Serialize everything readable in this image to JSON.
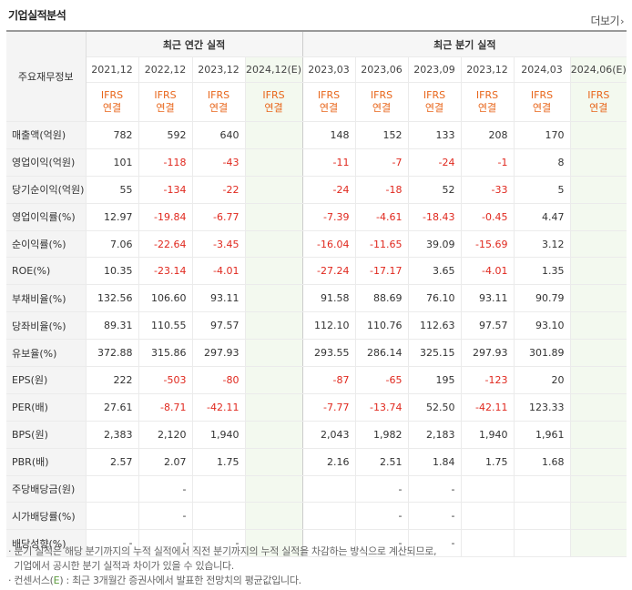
{
  "header": {
    "title": "기업실적분석",
    "more_label": "더보기"
  },
  "table": {
    "row_header_label": "주요재무정보",
    "group_annual": "최근 연간 실적",
    "group_quarter": "최근 분기 실적",
    "periods_annual": [
      "2021,12",
      "2022,12",
      "2023,12",
      "2024,12(E)"
    ],
    "periods_quarter": [
      "2023,03",
      "2023,06",
      "2023,09",
      "2023,12",
      "2024,03",
      "2024,06(E)"
    ],
    "std_line1": "IFRS",
    "std_line2": "연결",
    "rows": [
      {
        "label": "매출액(억원)",
        "values": [
          "782",
          "592",
          "640",
          "",
          "148",
          "152",
          "133",
          "208",
          "170",
          ""
        ]
      },
      {
        "label": "영업이익(억원)",
        "values": [
          "101",
          "-118",
          "-43",
          "",
          "-11",
          "-7",
          "-24",
          "-1",
          "8",
          ""
        ]
      },
      {
        "label": "당기순이익(억원)",
        "values": [
          "55",
          "-134",
          "-22",
          "",
          "-24",
          "-18",
          "52",
          "-33",
          "5",
          ""
        ]
      },
      {
        "label": "영업이익률(%)",
        "values": [
          "12.97",
          "-19.84",
          "-6.77",
          "",
          "-7.39",
          "-4.61",
          "-18.43",
          "-0.45",
          "4.47",
          ""
        ]
      },
      {
        "label": "순이익률(%)",
        "values": [
          "7.06",
          "-22.64",
          "-3.45",
          "",
          "-16.04",
          "-11.65",
          "39.09",
          "-15.69",
          "3.12",
          ""
        ]
      },
      {
        "label": "ROE(%)",
        "values": [
          "10.35",
          "-23.14",
          "-4.01",
          "",
          "-27.24",
          "-17.17",
          "3.65",
          "-4.01",
          "1.35",
          ""
        ]
      },
      {
        "label": "부채비율(%)",
        "values": [
          "132.56",
          "106.60",
          "93.11",
          "",
          "91.58",
          "88.69",
          "76.10",
          "93.11",
          "90.79",
          ""
        ]
      },
      {
        "label": "당좌비율(%)",
        "values": [
          "89.31",
          "110.55",
          "97.57",
          "",
          "112.10",
          "110.76",
          "112.63",
          "97.57",
          "93.10",
          ""
        ]
      },
      {
        "label": "유보율(%)",
        "values": [
          "372.88",
          "315.86",
          "297.93",
          "",
          "293.55",
          "286.14",
          "325.15",
          "297.93",
          "301.89",
          ""
        ]
      },
      {
        "label": "EPS(원)",
        "values": [
          "222",
          "-503",
          "-80",
          "",
          "-87",
          "-65",
          "195",
          "-123",
          "20",
          ""
        ]
      },
      {
        "label": "PER(배)",
        "values": [
          "27.61",
          "-8.71",
          "-42.11",
          "",
          "-7.77",
          "-13.74",
          "52.50",
          "-42.11",
          "123.33",
          ""
        ]
      },
      {
        "label": "BPS(원)",
        "values": [
          "2,383",
          "2,120",
          "1,940",
          "",
          "2,043",
          "1,982",
          "2,183",
          "1,940",
          "1,961",
          ""
        ]
      },
      {
        "label": "PBR(배)",
        "values": [
          "2.57",
          "2.07",
          "1.75",
          "",
          "2.16",
          "2.51",
          "1.84",
          "1.75",
          "1.68",
          ""
        ]
      },
      {
        "label": "주당배당금(원)",
        "values": [
          "",
          "-",
          "",
          "",
          "",
          "-",
          "-",
          "",
          "",
          ""
        ]
      },
      {
        "label": "시가배당률(%)",
        "values": [
          "",
          "-",
          "",
          "",
          "",
          "-",
          "-",
          "",
          "",
          ""
        ]
      },
      {
        "label": "배당성향(%)",
        "values": [
          "-",
          "-",
          "-",
          "",
          "",
          "-",
          "-",
          "",
          "",
          ""
        ]
      }
    ]
  },
  "notes": {
    "line1": "· 분기 실적은 해당 분기까지의 누적 실적에서 직전 분기까지의 누적 실적을 차감하는 방식으로 계산되므로,",
    "line2": "  기업에서 공시한 분기 실적과 차이가 있을 수 있습니다.",
    "line3_prefix": "· 컨센서스(",
    "line3_mark": "E",
    "line3_suffix": ") : 최근 3개월간 증권사에서 발표한 전망치의 평균값입니다."
  }
}
